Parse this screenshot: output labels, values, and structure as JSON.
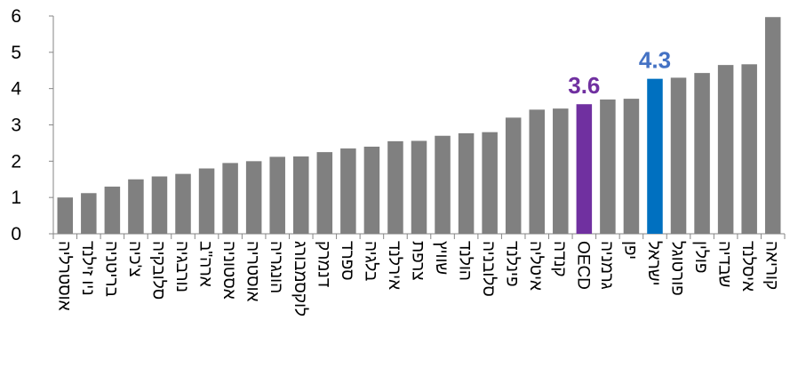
{
  "chart_data": {
    "type": "bar",
    "title": "",
    "xlabel": "",
    "ylabel": "",
    "ylim": [
      0,
      6
    ],
    "yticks": [
      "0",
      "1",
      "2",
      "3",
      "4",
      "5",
      "6"
    ],
    "grid": false,
    "legend": "none",
    "categories": [
      "אוסטרליה",
      "ניו זילנד",
      "בריטניה",
      "צ'כיה",
      "סלובקיה",
      "נורבגיה",
      "ארה\"ב",
      "אסטוניה",
      "אוסטריה",
      "הונגריה",
      "לוקסמבורג",
      "דנמרק",
      "ספרד",
      "בלגיה",
      "אירלנד",
      "צרפת",
      "שוויץ",
      "הולנד",
      "סלובניה",
      "פינלנד",
      "איטליה",
      "קנדה",
      "OECD",
      "גרמניה",
      "יפן",
      "ישראל",
      "פורטוגל",
      "פולין",
      "שבדיה",
      "איסלנד",
      "קוריאה"
    ],
    "values": [
      1.0,
      1.12,
      1.3,
      1.5,
      1.58,
      1.65,
      1.8,
      1.95,
      2.0,
      2.12,
      2.13,
      2.25,
      2.35,
      2.4,
      2.55,
      2.56,
      2.7,
      2.77,
      2.8,
      3.2,
      3.42,
      3.45,
      3.57,
      3.7,
      3.72,
      4.27,
      4.3,
      4.43,
      4.65,
      4.67,
      5.97
    ],
    "colors": {
      "default": "#808080",
      "OECD": "#7030a0",
      "ישראל": "#0070c0"
    },
    "data_labels": [
      {
        "category": "OECD",
        "text": "3.6",
        "color": "#7030a0"
      },
      {
        "category": "ישראל",
        "text": "4.3",
        "color": "#4472c4"
      }
    ]
  }
}
